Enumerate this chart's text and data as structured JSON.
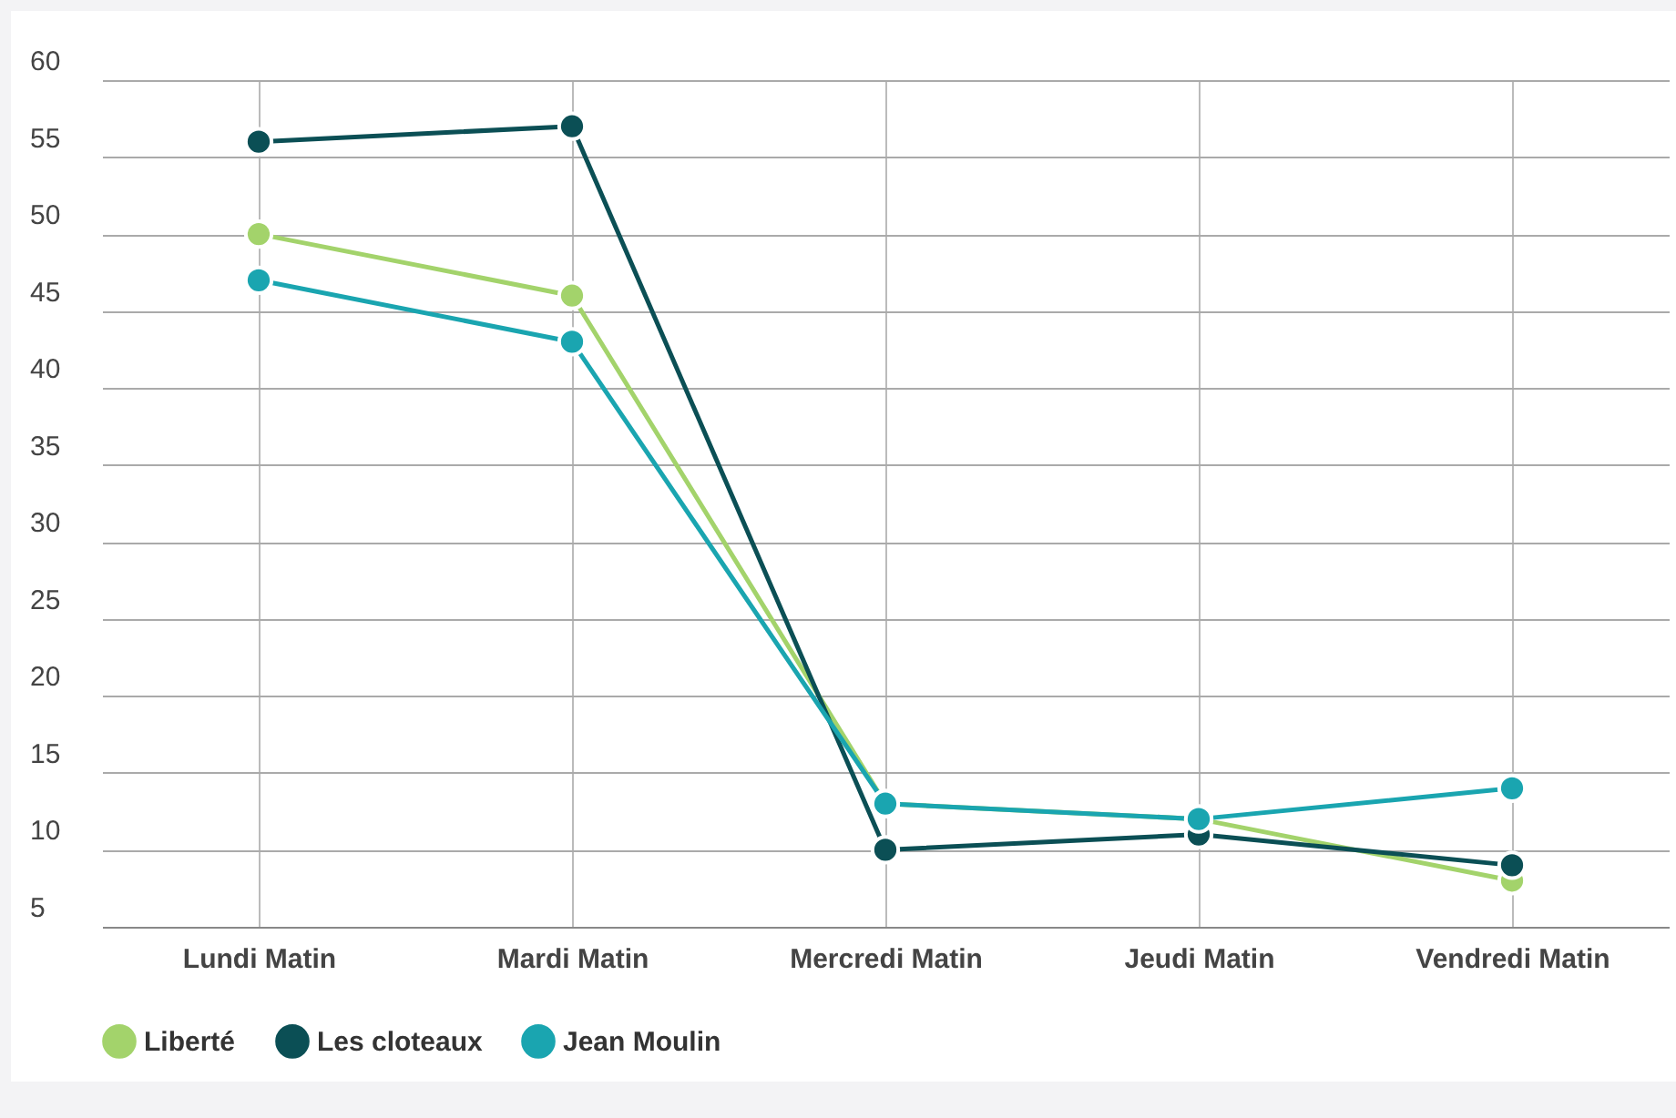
{
  "chart_data": {
    "type": "line",
    "categories": [
      "Lundi Matin",
      "Mardi Matin",
      "Mercredi Matin",
      "Jeudi Matin",
      "Vendredi Matin"
    ],
    "series": [
      {
        "name": "Liberté",
        "color": "#a3d36b",
        "values": [
          50,
          46,
          13,
          12,
          8
        ]
      },
      {
        "name": "Les cloteaux",
        "color": "#0b4f55",
        "values": [
          56,
          57,
          10,
          11,
          9
        ]
      },
      {
        "name": "Jean Moulin",
        "color": "#1aa5b0",
        "values": [
          47,
          43,
          13,
          12,
          14
        ]
      }
    ],
    "ylim": [
      5,
      60
    ],
    "yticks": [
      5,
      10,
      15,
      20,
      25,
      30,
      35,
      40,
      45,
      50,
      55,
      60
    ],
    "grid": true,
    "legend": "bottom",
    "marker": "circle",
    "line_style": "solid"
  }
}
